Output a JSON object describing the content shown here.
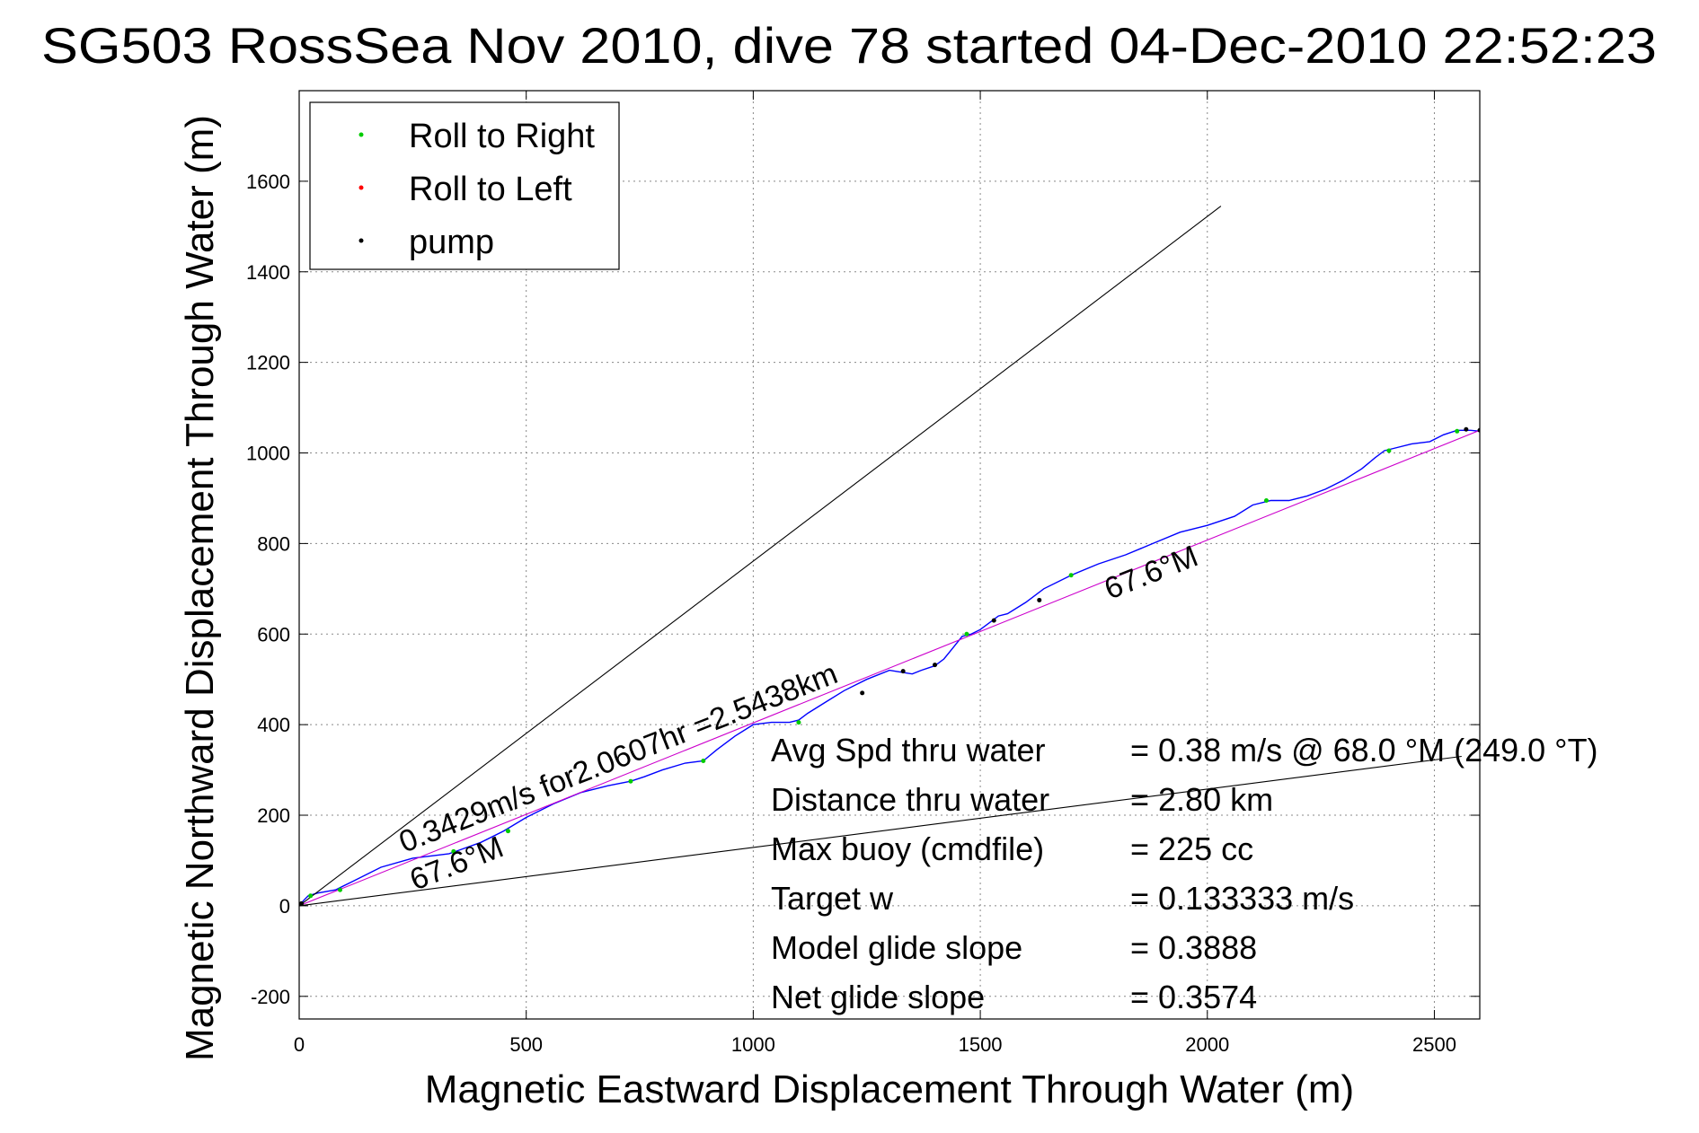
{
  "chart_data": {
    "type": "line",
    "title": "SG503 RossSea Nov 2010, dive 78 started 04-Dec-2010 22:52:23",
    "xlabel": "Magnetic Eastward Displacement Through Water (m)",
    "ylabel": "Magnetic Northward Displacement Through Water (m)",
    "xlim": [
      0,
      2600
    ],
    "ylim": [
      -250,
      1800
    ],
    "x_ticks": [
      0,
      500,
      1000,
      1500,
      2000,
      2500
    ],
    "y_ticks": [
      -200,
      0,
      200,
      400,
      600,
      800,
      1000,
      1200,
      1400,
      1600
    ],
    "grid": true,
    "legend_position": "top-left",
    "legend": [
      {
        "label": "Roll to Right",
        "color": "#00cc00"
      },
      {
        "label": "Roll to Left",
        "color": "#ff0000"
      },
      {
        "label": "pump",
        "color": "#000000"
      }
    ],
    "series": [
      {
        "style": "track",
        "color": "#0000ff",
        "x": [
          0,
          10,
          20,
          40,
          80,
          120,
          180,
          250,
          330,
          350,
          400,
          450,
          500,
          560,
          620,
          680,
          730,
          760,
          800,
          850,
          890,
          920,
          960,
          1000,
          1040,
          1080,
          1100,
          1120,
          1160,
          1200,
          1250,
          1300,
          1330,
          1350,
          1370,
          1400,
          1420,
          1440,
          1460,
          1480,
          1500,
          1520,
          1540,
          1560,
          1600,
          1640,
          1700,
          1760,
          1820,
          1880,
          1940,
          2000,
          2060,
          2100,
          2140,
          2180,
          2220,
          2260,
          2300,
          2340,
          2370,
          2390,
          2410,
          2450,
          2490,
          2520,
          2550,
          2580,
          2600
        ],
        "y": [
          0,
          12,
          22,
          28,
          35,
          55,
          85,
          105,
          115,
          122,
          140,
          165,
          195,
          225,
          250,
          265,
          275,
          285,
          300,
          315,
          320,
          345,
          375,
          400,
          405,
          405,
          410,
          425,
          450,
          475,
          500,
          520,
          515,
          512,
          520,
          530,
          545,
          570,
          595,
          600,
          610,
          625,
          640,
          645,
          670,
          700,
          730,
          755,
          775,
          800,
          825,
          840,
          860,
          885,
          895,
          895,
          905,
          920,
          940,
          965,
          990,
          1005,
          1010,
          1020,
          1025,
          1040,
          1050,
          1050,
          1048
        ]
      },
      {
        "style": "fit",
        "color": "#cc00cc",
        "x": [
          0,
          2600
        ],
        "y": [
          0,
          1050
        ]
      },
      {
        "style": "reference",
        "color": "#000000",
        "x": [
          0,
          2030
        ],
        "y": [
          0,
          1545
        ]
      },
      {
        "style": "reference",
        "color": "#000000",
        "x": [
          0,
          2560
        ],
        "y": [
          0,
          330
        ]
      },
      {
        "style": "markers",
        "name": "Roll to Right",
        "color": "#00cc00",
        "x": [
          25,
          90,
          340,
          460,
          730,
          890,
          1100,
          1470,
          1700,
          2130,
          2400,
          2550
        ],
        "y": [
          22,
          35,
          120,
          165,
          275,
          320,
          405,
          600,
          730,
          895,
          1005,
          1048
        ]
      },
      {
        "style": "markers",
        "name": "pump",
        "color": "#000000",
        "x": [
          5,
          1240,
          1330,
          1400,
          1530,
          1630,
          2570,
          2600
        ],
        "y": [
          5,
          470,
          518,
          532,
          630,
          675,
          1052,
          1050
        ]
      }
    ],
    "annotations": {
      "heading_upper": "67.6°M",
      "heading_lower": "67.6°M",
      "speed_text": "0.3429m/s for2.0607hr =2.5438km"
    },
    "info_box": [
      {
        "label": "Avg Spd thru water",
        "value": "=  0.38 m/s @  68.0 °M (249.0 °T)"
      },
      {
        "label": "Distance thru water",
        "value": "=  2.80 km"
      },
      {
        "label": "Max buoy (cmdfile)",
        "value": "= 225 cc"
      },
      {
        "label": "Target w",
        "value": "= 0.133333 m/s"
      },
      {
        "label": "Model glide slope",
        "value": "= 0.3888"
      },
      {
        "label": "Net glide slope",
        "value": "= 0.3574"
      }
    ]
  }
}
